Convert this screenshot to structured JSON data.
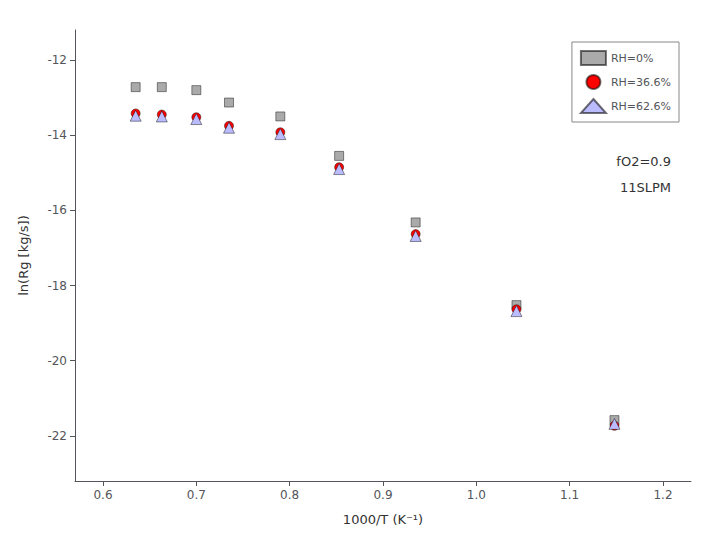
{
  "chart_data": {
    "type": "scatter",
    "xlabel": "1000/T (K⁻¹)",
    "ylabel": "ln(Rg [kg/s])",
    "annotations": [
      "fO2=0.9",
      "11SLPM"
    ],
    "xlim": [
      0.57,
      1.23
    ],
    "ylim": [
      -23.2,
      -11.2
    ],
    "xticks": [
      {
        "value": 0.6,
        "label": "0.6"
      },
      {
        "value": 0.7,
        "label": "0.7"
      },
      {
        "value": 0.8,
        "label": "0.8"
      },
      {
        "value": 0.9,
        "label": "0.9"
      },
      {
        "value": 1.0,
        "label": "1.0"
      },
      {
        "value": 1.1,
        "label": "1.1"
      },
      {
        "value": 1.2,
        "label": "1.2"
      }
    ],
    "yticks": [
      -12,
      -14,
      -16,
      -18,
      -20,
      -22
    ],
    "grid": false,
    "legend": "upper right",
    "series": [
      {
        "name": "RH=0%",
        "marker": "square",
        "color": "#aaaaaa",
        "x": [
          0.635,
          0.663,
          0.7,
          0.735,
          0.79,
          0.853,
          0.935,
          1.043,
          1.148
        ],
        "values": [
          -12.72,
          -12.72,
          -12.8,
          -13.13,
          -13.5,
          -14.55,
          -16.32,
          -18.52,
          -21.58
        ]
      },
      {
        "name": "RH=36.6%",
        "marker": "circle",
        "color": "#ff0000",
        "x": [
          0.635,
          0.663,
          0.7,
          0.735,
          0.79,
          0.853,
          0.935,
          1.043,
          1.148
        ],
        "values": [
          -13.42,
          -13.45,
          -13.52,
          -13.75,
          -13.92,
          -14.85,
          -16.63,
          -18.63,
          -21.73
        ]
      },
      {
        "name": "RH=62.6%",
        "marker": "triangle",
        "color": "#bbbbff",
        "x": [
          0.635,
          0.663,
          0.7,
          0.735,
          0.79,
          0.853,
          0.935,
          1.043,
          1.148
        ],
        "values": [
          -13.48,
          -13.5,
          -13.57,
          -13.8,
          -13.97,
          -14.9,
          -16.68,
          -18.68,
          -21.68
        ]
      }
    ]
  }
}
